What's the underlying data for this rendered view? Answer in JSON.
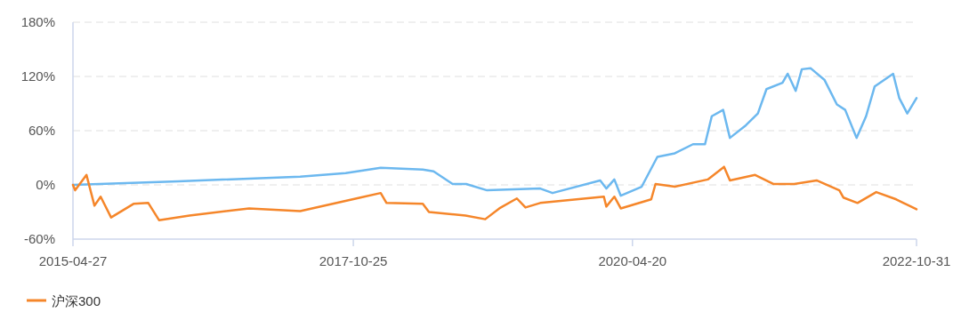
{
  "chart_data": {
    "type": "line",
    "xlim": [
      "2015-04-27",
      "2022-10-31"
    ],
    "xticks": [
      {
        "value": "2015-04-27",
        "label": "2015-04-27"
      },
      {
        "value": "2017-10-25",
        "label": "2017-10-25"
      },
      {
        "value": "2020-04-20",
        "label": "2020-04-20"
      },
      {
        "value": "2022-10-31",
        "label": "2022-10-31"
      }
    ],
    "ylim": [
      -60,
      180
    ],
    "yticks": [
      {
        "value": -60,
        "label": "-60%"
      },
      {
        "value": 0,
        "label": "0%"
      },
      {
        "value": 60,
        "label": "60%"
      },
      {
        "value": 120,
        "label": "120%"
      },
      {
        "value": 180,
        "label": "180%"
      }
    ],
    "grid": "y",
    "legend": "bottom left",
    "marker": "none",
    "line_style": "solid",
    "series": [
      {
        "color": "#6cb8ef",
        "x": [
          "2015-04-27",
          "2016-04-04",
          "2017-05-05",
          "2017-09-30",
          "2018-01-22",
          "2018-06-08",
          "2018-07-13",
          "2018-09-13",
          "2018-10-27",
          "2019-01-03",
          "2019-06-25",
          "2019-08-04",
          "2020-01-06",
          "2020-01-26",
          "2020-02-21",
          "2020-03-13",
          "2020-05-20",
          "2020-07-10",
          "2020-09-05",
          "2020-11-03",
          "2020-12-12",
          "2021-01-03",
          "2021-02-09",
          "2021-03-03",
          "2021-04-24",
          "2021-06-02",
          "2021-06-30",
          "2021-08-21",
          "2021-09-07",
          "2021-10-03",
          "2021-10-23",
          "2021-11-21",
          "2022-01-05",
          "2022-02-14",
          "2022-03-13",
          "2022-04-19",
          "2022-05-20",
          "2022-06-17",
          "2022-08-16",
          "2022-09-05",
          "2022-10-01",
          "2022-10-31"
        ],
        "values": [
          0,
          4,
          9,
          13,
          19,
          17,
          15,
          1,
          1,
          -6,
          -4,
          -9,
          5,
          -4,
          6,
          -12,
          -2,
          31,
          35,
          45,
          45,
          76,
          83,
          52,
          66,
          79,
          106,
          113,
          123,
          104,
          128,
          129,
          116,
          89,
          83,
          52,
          76,
          109,
          123,
          96,
          79,
          96
        ]
      },
      {
        "name": "沪深300",
        "color": "#f5862a",
        "x": [
          "2015-04-27",
          "2015-05-04",
          "2015-06-10",
          "2015-07-06",
          "2015-07-26",
          "2015-08-29",
          "2015-11-10",
          "2015-12-28",
          "2016-02-01",
          "2016-05-10",
          "2016-11-20",
          "2017-05-05",
          "2017-11-17",
          "2018-01-22",
          "2018-02-10",
          "2018-06-08",
          "2018-06-28",
          "2018-10-25",
          "2018-12-28",
          "2019-02-12",
          "2019-04-10",
          "2019-05-08",
          "2019-06-25",
          "2020-01-18",
          "2020-01-26",
          "2020-02-21",
          "2020-03-13",
          "2020-06-20",
          "2020-07-04",
          "2020-09-05",
          "2020-12-21",
          "2021-02-12",
          "2021-03-03",
          "2021-05-24",
          "2021-07-22",
          "2021-09-28",
          "2021-12-10",
          "2022-02-22",
          "2022-03-07",
          "2022-04-22",
          "2022-06-22",
          "2022-08-26",
          "2022-10-31"
        ],
        "values": [
          0,
          -6,
          11,
          -23,
          -13,
          -36,
          -21,
          -20,
          -39,
          -34,
          -26,
          -29,
          -14,
          -9,
          -20,
          -21,
          -30,
          -34,
          -38,
          -26,
          -15,
          -25,
          -20,
          -13,
          -24,
          -13,
          -26,
          -16,
          1,
          -2,
          6,
          20,
          5,
          11,
          1,
          1,
          5,
          -6,
          -14,
          -20,
          -8,
          -16,
          -27
        ]
      }
    ]
  }
}
